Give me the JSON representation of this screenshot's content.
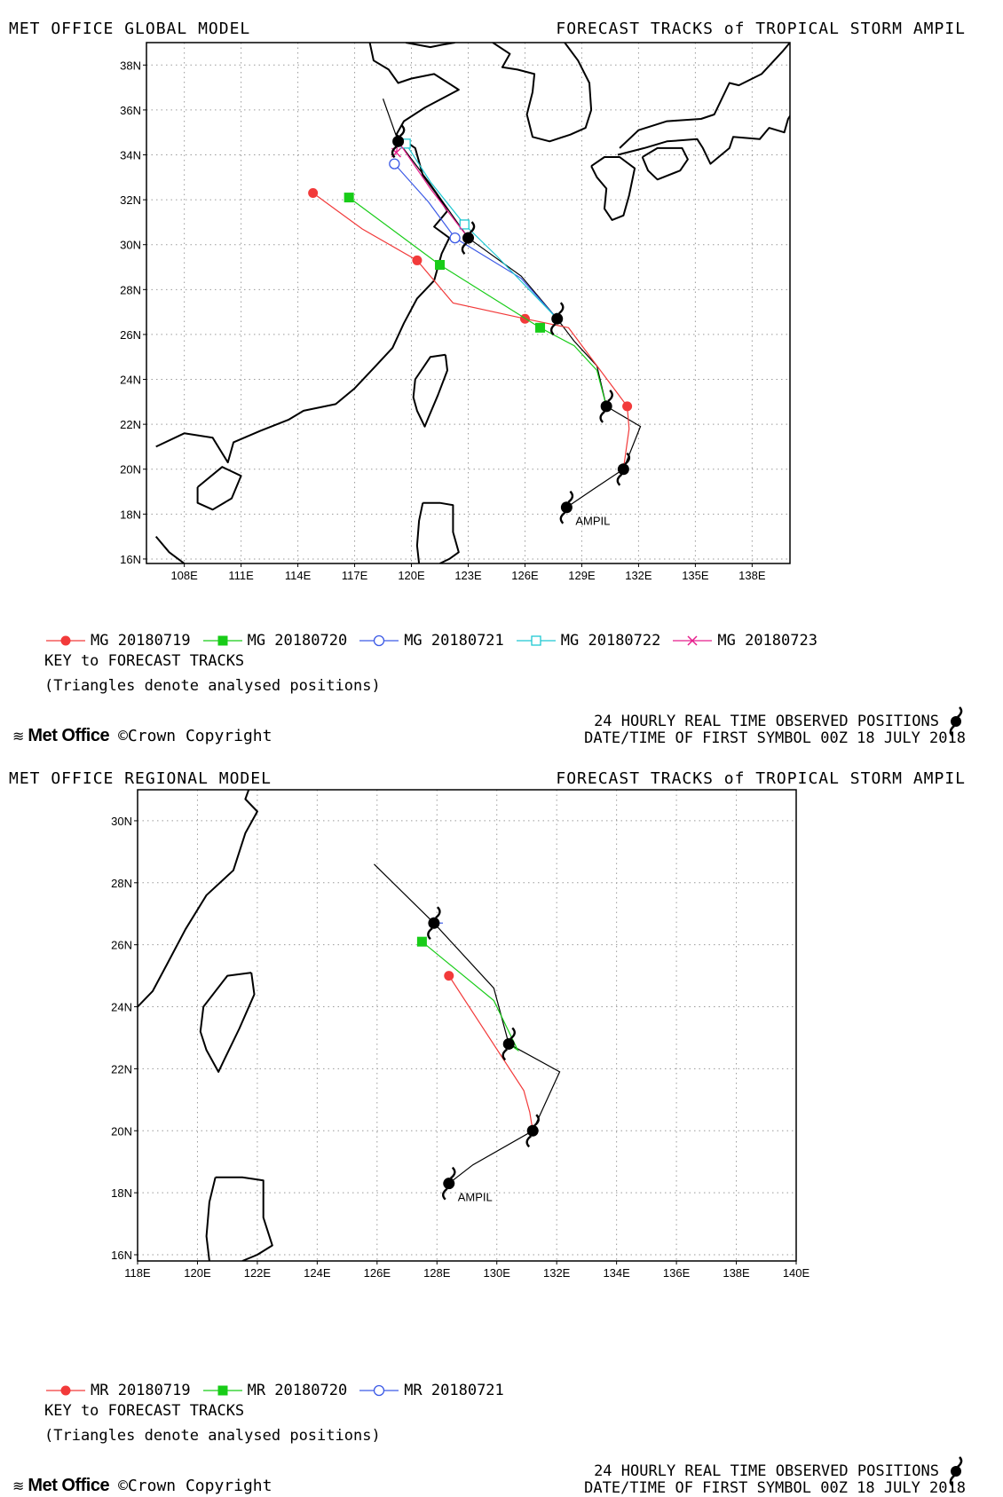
{
  "panels": [
    {
      "id": "global",
      "model_title": "MET OFFICE GLOBAL MODEL",
      "forecast_title": "FORECAST TRACKS of TROPICAL STORM AMPIL",
      "storm_label": "AMPIL",
      "legend": [
        {
          "label": "MG 20180719",
          "color": "#f23a3a",
          "marker": "filled-circle"
        },
        {
          "label": "MG 20180720",
          "color": "#18cc18",
          "marker": "filled-square"
        },
        {
          "label": "MG 20180721",
          "color": "#3c5ae6",
          "marker": "open-circle"
        },
        {
          "label": "MG 20180722",
          "color": "#1ec8d2",
          "marker": "open-square"
        },
        {
          "label": "MG 20180723",
          "color": "#e61e8c",
          "marker": "cross"
        }
      ],
      "key_title": "KEY to FORECAST TRACKS",
      "key_note": "(Triangles denote analysed positions)",
      "observed_text": "24 HOURLY REAL TIME OBSERVED POSITIONS",
      "date_text": "DATE/TIME OF FIRST SYMBOL 00Z 18 JULY 2018",
      "logo_text": "Met Office",
      "copyright_text": "©Crown Copyright",
      "x_ticks": [
        "108E",
        "111E",
        "114E",
        "117E",
        "120E",
        "123E",
        "126E",
        "129E",
        "132E",
        "135E",
        "138E"
      ],
      "y_ticks": [
        "16N",
        "18N",
        "20N",
        "22N",
        "24N",
        "26N",
        "28N",
        "30N",
        "32N",
        "34N",
        "36N",
        "38N"
      ]
    },
    {
      "id": "regional",
      "model_title": "MET OFFICE REGIONAL MODEL",
      "forecast_title": "FORECAST TRACKS of TROPICAL STORM AMPIL",
      "storm_label": "AMPIL",
      "legend": [
        {
          "label": "MR 20180719",
          "color": "#f23a3a",
          "marker": "filled-circle"
        },
        {
          "label": "MR 20180720",
          "color": "#18cc18",
          "marker": "filled-square"
        },
        {
          "label": "MR 20180721",
          "color": "#3c5ae6",
          "marker": "open-circle"
        }
      ],
      "key_title": "KEY to FORECAST TRACKS",
      "key_note": "(Triangles denote analysed positions)",
      "observed_text": "24 HOURLY REAL TIME OBSERVED POSITIONS",
      "date_text": "DATE/TIME OF FIRST SYMBOL 00Z 18 JULY 2018",
      "logo_text": "Met Office",
      "copyright_text": "©Crown Copyright",
      "x_ticks": [
        "118E",
        "120E",
        "122E",
        "124E",
        "126E",
        "128E",
        "130E",
        "132E",
        "134E",
        "136E",
        "138E",
        "140E"
      ],
      "y_ticks": [
        "16N",
        "18N",
        "20N",
        "22N",
        "24N",
        "26N",
        "28N",
        "30N"
      ]
    }
  ],
  "chart_data": [
    {
      "type": "scatter",
      "title": "FORECAST TRACKS of TROPICAL STORM AMPIL",
      "subtitle": "MET OFFICE GLOBAL MODEL",
      "xlim": [
        106,
        140
      ],
      "ylim": [
        15.8,
        39
      ],
      "grid": true,
      "observed": {
        "lon": [
          128.2,
          131.2,
          130.3,
          127.7,
          123.0,
          119.3
        ],
        "lat": [
          18.3,
          20.0,
          22.8,
          26.7,
          30.3,
          34.6
        ]
      },
      "analysis_track": {
        "lon": [
          128.2,
          129.6,
          131.2,
          132.1,
          130.3,
          129.8,
          128.6,
          127.7,
          125.8,
          123.0,
          121.0,
          119.3,
          118.5
        ],
        "lat": [
          18.3,
          19.1,
          20.0,
          21.9,
          22.8,
          24.6,
          25.7,
          26.7,
          28.6,
          30.3,
          32.7,
          34.6,
          36.5
        ]
      },
      "series": [
        {
          "name": "MG 20180719",
          "lon": [
            131.2,
            131.5,
            131.4,
            128.3,
            126.0,
            122.2,
            120.3,
            117.4,
            114.8
          ],
          "lat": [
            20.0,
            21.8,
            22.8,
            26.3,
            26.7,
            27.4,
            29.3,
            30.7,
            32.3
          ],
          "marked": [
            false,
            false,
            true,
            false,
            true,
            false,
            true,
            false,
            true
          ]
        },
        {
          "name": "MG 20180720",
          "lon": [
            130.3,
            129.8,
            128.6,
            126.8,
            121.5,
            116.7
          ],
          "lat": [
            22.8,
            24.4,
            25.5,
            26.3,
            29.1,
            32.1
          ],
          "marked": [
            false,
            false,
            false,
            true,
            true,
            true
          ]
        },
        {
          "name": "MG 20180721",
          "lon": [
            127.7,
            125.8,
            122.3,
            120.9,
            119.1
          ],
          "lat": [
            26.7,
            28.5,
            30.3,
            31.9,
            33.6
          ],
          "marked": [
            false,
            false,
            true,
            false,
            true
          ]
        },
        {
          "name": "MG 20180722",
          "lon": [
            127.7,
            124.5,
            122.8,
            121.0,
            119.7
          ],
          "lat": [
            26.7,
            29.5,
            30.9,
            32.8,
            34.5
          ],
          "marked": [
            false,
            false,
            true,
            false,
            true
          ]
        },
        {
          "name": "MG 20180723",
          "lon": [
            123.0,
            121.0,
            119.3,
            119.2
          ],
          "lat": [
            30.3,
            32.5,
            34.6,
            34.1
          ],
          "marked": [
            false,
            false,
            false,
            true
          ]
        }
      ]
    },
    {
      "type": "scatter",
      "title": "FORECAST TRACKS of TROPICAL STORM AMPIL",
      "subtitle": "MET OFFICE REGIONAL MODEL",
      "xlim": [
        118,
        140
      ],
      "ylim": [
        15.8,
        31
      ],
      "grid": true,
      "observed": {
        "lon": [
          128.4,
          131.2,
          130.4,
          127.9
        ],
        "lat": [
          18.3,
          20.0,
          22.8,
          26.7
        ]
      },
      "analysis_track": {
        "lon": [
          128.4,
          129.2,
          131.2,
          132.1,
          130.4,
          129.9,
          127.9,
          125.9
        ],
        "lat": [
          18.3,
          18.9,
          20.0,
          21.9,
          22.8,
          24.6,
          26.7,
          28.6
        ]
      },
      "series": [
        {
          "name": "MR 20180719",
          "lon": [
            131.2,
            131.1,
            130.9,
            128.4
          ],
          "lat": [
            20.0,
            20.6,
            21.3,
            25.0
          ],
          "marked": [
            false,
            false,
            false,
            true
          ]
        },
        {
          "name": "MR 20180720",
          "lon": [
            130.4,
            130.7,
            129.9,
            127.5
          ],
          "lat": [
            22.8,
            22.6,
            24.2,
            26.1
          ],
          "marked": [
            false,
            false,
            false,
            true
          ]
        },
        {
          "name": "MR 20180721",
          "lon": [
            127.9,
            128.2
          ],
          "lat": [
            26.7,
            26.7
          ],
          "marked": [
            false,
            false
          ]
        }
      ]
    }
  ]
}
